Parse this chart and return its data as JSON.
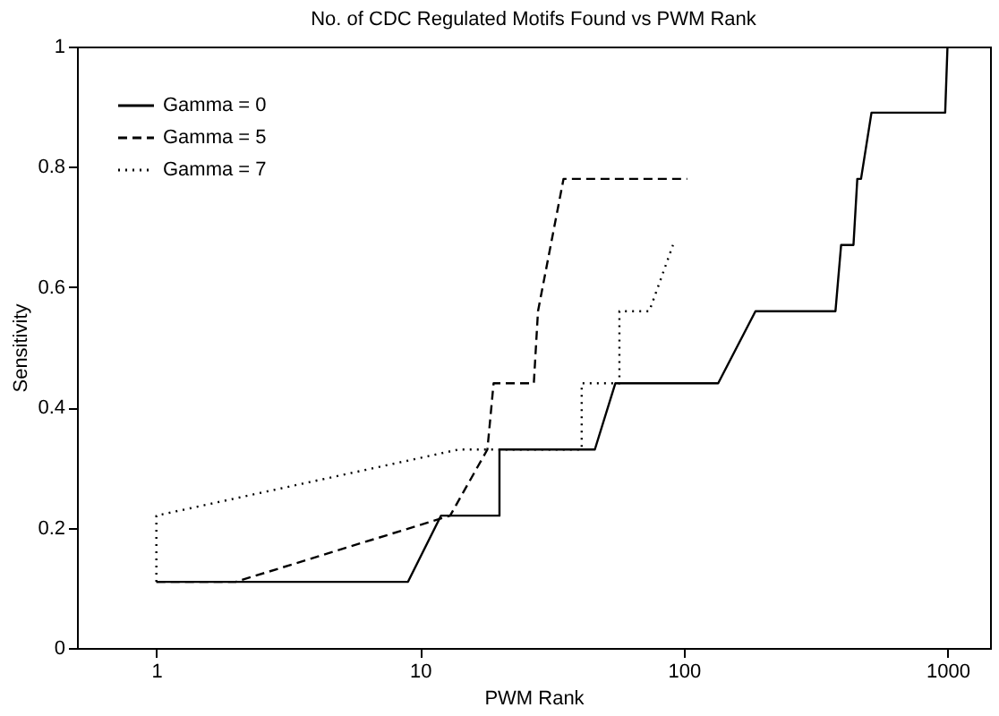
{
  "chart_data": {
    "type": "line",
    "title": "No. of CDC Regulated Motifs Found vs  PWM Rank",
    "xlabel": "PWM Rank",
    "ylabel": "Sensitivity",
    "log": "x",
    "xlim": [
      0.5,
      1450
    ],
    "xticks": [
      1,
      10,
      100,
      1000
    ],
    "ylim": [
      0,
      1
    ],
    "yticks": [
      0,
      0.2,
      0.4,
      0.6,
      0.8,
      1
    ],
    "grid": false,
    "legend": "top left",
    "marker": "none",
    "series": [
      {
        "name": "Gamma = 0",
        "color": "#000000",
        "line_style": "solid",
        "x": [
          1,
          9,
          12,
          20,
          20,
          46,
          55,
          135,
          187,
          376,
          395,
          440,
          455,
          470,
          515,
          980,
          1000
        ],
        "values": [
          0.11,
          0.11,
          0.22,
          0.22,
          0.33,
          0.33,
          0.44,
          0.44,
          0.56,
          0.56,
          0.67,
          0.67,
          0.78,
          0.78,
          0.89,
          0.89,
          1
        ]
      },
      {
        "name": "Gamma = 5",
        "color": "#000000",
        "line_style": "dashed",
        "x": [
          1,
          2,
          13,
          18,
          19,
          27,
          28,
          35,
          103
        ],
        "values": [
          0.11,
          0.11,
          0.22,
          0.33,
          0.44,
          0.44,
          0.56,
          0.78,
          0.78
        ]
      },
      {
        "name": "Gamma = 7",
        "color": "#000000",
        "line_style": "dotted",
        "x": [
          1,
          1,
          14,
          41,
          41,
          57,
          57,
          74,
          91
        ],
        "values": [
          0.11,
          0.22,
          0.33,
          0.33,
          0.44,
          0.44,
          0.56,
          0.56,
          0.67
        ]
      }
    ]
  }
}
